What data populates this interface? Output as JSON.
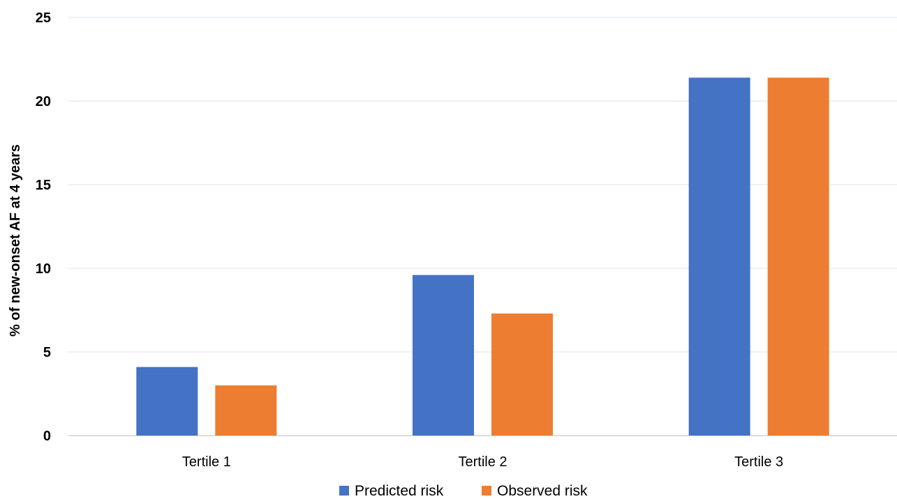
{
  "chart_data": {
    "type": "bar",
    "categories": [
      "Tertile 1",
      "Tertile 2",
      "Tertile 3"
    ],
    "series": [
      {
        "name": "Predicted risk",
        "color": "#4472c4",
        "values": [
          4.1,
          9.6,
          21.4
        ]
      },
      {
        "name": "Observed risk",
        "color": "#ed7d31",
        "values": [
          3.0,
          7.3,
          21.4
        ]
      }
    ],
    "title": "",
    "xlabel": "",
    "ylabel": "% of new-onset AF at 4 years",
    "ylim": [
      0,
      25
    ],
    "yticks": [
      "0",
      "5",
      "10",
      "15",
      "20",
      "25"
    ],
    "grid": true,
    "legend_position": "bottom"
  }
}
